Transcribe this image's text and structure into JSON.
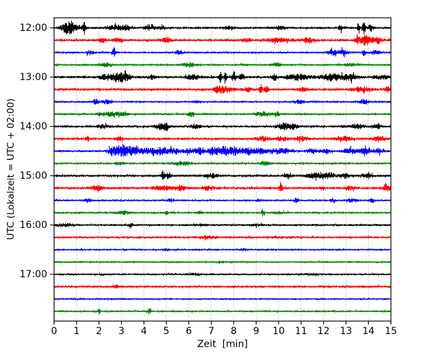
{
  "chart_data": {
    "type": "line",
    "subtype": "helicorder-seismogram",
    "title": "",
    "xlabel": "Zeit  [min]",
    "ylabel": "UTC (Lokalzeit = UTC + 02:00)",
    "xlim": [
      0,
      15
    ],
    "minutes_per_line": 15,
    "xticks": [
      "0",
      "1",
      "2",
      "3",
      "4",
      "5",
      "6",
      "7",
      "8",
      "9",
      "10",
      "11",
      "12",
      "13",
      "14",
      "15"
    ],
    "ytick_hours": [
      "12:00",
      "13:00",
      "14:00",
      "15:00",
      "16:00",
      "17:00"
    ],
    "grid": {
      "vertical_dotted": true,
      "color": "#999999"
    },
    "colors": {
      "black": "#000000",
      "red": "#ff0000",
      "blue": "#0000ff",
      "green": "#008000"
    },
    "amplitude_units": "px half-amplitude; events are [center_min, width_min, amp]",
    "traces": [
      {
        "time": "12:00",
        "color": "black",
        "base": 1.7,
        "events": [
          [
            0.5,
            0.2,
            5
          ],
          [
            0.8,
            0.3,
            6.5
          ],
          [
            1.35,
            0.07,
            9
          ],
          [
            2.7,
            0.3,
            3
          ],
          [
            3.2,
            0.3,
            3
          ],
          [
            4.3,
            0.3,
            2.5
          ],
          [
            4.85,
            0.1,
            3.5
          ],
          [
            7.8,
            0.2,
            2
          ],
          [
            10.1,
            0.2,
            2
          ],
          [
            12.75,
            0.07,
            5
          ],
          [
            13.55,
            0.05,
            11
          ],
          [
            13.8,
            0.06,
            12
          ],
          [
            14.1,
            0.12,
            4
          ]
        ]
      },
      {
        "time": "12:15",
        "color": "red",
        "base": 1.9,
        "events": [
          [
            2.15,
            0.15,
            3
          ],
          [
            2.9,
            0.2,
            2.5
          ],
          [
            5.0,
            0.25,
            2.5
          ],
          [
            8.6,
            0.2,
            2
          ],
          [
            10.0,
            0.5,
            2.2
          ],
          [
            11.3,
            0.3,
            2.5
          ],
          [
            13.5,
            0.1,
            4
          ],
          [
            13.9,
            0.25,
            7
          ],
          [
            14.4,
            0.2,
            4
          ]
        ]
      },
      {
        "time": "12:30",
        "color": "blue",
        "base": 1.5,
        "events": [
          [
            1.6,
            0.15,
            3
          ],
          [
            2.65,
            0.08,
            5.5
          ],
          [
            5.55,
            0.15,
            3
          ],
          [
            12.4,
            0.3,
            3.5
          ],
          [
            12.9,
            0.15,
            4
          ],
          [
            13.8,
            0.07,
            4
          ],
          [
            14.3,
            0.2,
            2.5
          ]
        ]
      },
      {
        "time": "12:45",
        "color": "green",
        "base": 1.5,
        "events": [
          [
            2.3,
            0.25,
            1.8
          ],
          [
            6.0,
            0.3,
            2.5
          ],
          [
            9.9,
            0.25,
            2
          ],
          [
            13.2,
            0.3,
            1.5
          ]
        ]
      },
      {
        "time": "13:00",
        "color": "black",
        "base": 1.9,
        "events": [
          [
            2.3,
            0.25,
            3.5
          ],
          [
            2.8,
            0.25,
            5
          ],
          [
            3.15,
            0.3,
            5
          ],
          [
            4.35,
            0.15,
            2.8
          ],
          [
            6.2,
            0.3,
            3
          ],
          [
            7.4,
            0.06,
            8
          ],
          [
            7.62,
            0.06,
            8
          ],
          [
            8.0,
            0.07,
            9
          ],
          [
            8.35,
            0.12,
            4
          ],
          [
            9.8,
            0.1,
            5
          ],
          [
            10.8,
            0.6,
            3.5
          ],
          [
            12.4,
            0.5,
            4.5
          ],
          [
            13.2,
            0.3,
            4
          ],
          [
            14.6,
            0.25,
            2.5
          ]
        ]
      },
      {
        "time": "13:15",
        "color": "red",
        "base": 1.9,
        "events": [
          [
            7.35,
            0.2,
            5
          ],
          [
            7.75,
            0.25,
            3.5
          ],
          [
            8.65,
            0.15,
            3
          ],
          [
            9.2,
            0.07,
            6.5
          ],
          [
            9.45,
            0.1,
            4
          ],
          [
            11.1,
            0.2,
            2
          ],
          [
            13.7,
            0.4,
            3
          ],
          [
            14.9,
            0.15,
            3.5
          ]
        ]
      },
      {
        "time": "13:30",
        "color": "blue",
        "base": 1.5,
        "events": [
          [
            1.85,
            0.15,
            3.5
          ],
          [
            2.35,
            0.2,
            2.5
          ],
          [
            6.4,
            0.15,
            1.8
          ],
          [
            10.9,
            0.25,
            2.2
          ],
          [
            13.8,
            0.25,
            2.2
          ]
        ]
      },
      {
        "time": "13:45",
        "color": "green",
        "base": 1.6,
        "events": [
          [
            2.4,
            0.4,
            2.8
          ],
          [
            3.0,
            0.25,
            2.5
          ],
          [
            6.1,
            0.1,
            4
          ],
          [
            9.3,
            0.35,
            2.5
          ],
          [
            9.95,
            0.15,
            2.2
          ]
        ]
      },
      {
        "time": "14:00",
        "color": "black",
        "base": 1.8,
        "events": [
          [
            2.2,
            0.25,
            2
          ],
          [
            4.75,
            0.25,
            4
          ],
          [
            5.0,
            0.07,
            7.5
          ],
          [
            6.3,
            0.25,
            2
          ],
          [
            10.25,
            0.3,
            4.5
          ],
          [
            10.7,
            0.15,
            3
          ],
          [
            13.5,
            0.25,
            3
          ],
          [
            14.4,
            0.2,
            2
          ]
        ]
      },
      {
        "time": "14:15",
        "color": "red",
        "base": 1.8,
        "events": [
          [
            1.5,
            0.1,
            3
          ],
          [
            2.9,
            0.15,
            2.5
          ],
          [
            9.3,
            0.3,
            2.5
          ],
          [
            10.1,
            0.25,
            2.5
          ],
          [
            11.0,
            0.3,
            2.5
          ],
          [
            12.85,
            0.3,
            4
          ],
          [
            14.5,
            0.25,
            3.5
          ]
        ]
      },
      {
        "time": "14:30",
        "color": "blue",
        "base": 1.6,
        "events": [
          [
            2.6,
            0.2,
            5.5
          ],
          [
            3.05,
            0.3,
            7
          ],
          [
            3.5,
            0.25,
            5
          ],
          [
            4.1,
            0.3,
            4
          ],
          [
            4.7,
            0.3,
            4.5
          ],
          [
            5.3,
            0.3,
            3.5
          ],
          [
            6.0,
            0.25,
            3.5
          ],
          [
            6.5,
            0.2,
            4.5
          ],
          [
            7.1,
            0.25,
            5
          ],
          [
            7.6,
            0.3,
            6
          ],
          [
            8.1,
            0.25,
            5
          ],
          [
            8.65,
            0.3,
            4.5
          ],
          [
            9.2,
            0.25,
            4
          ],
          [
            9.8,
            0.25,
            3.5
          ],
          [
            10.3,
            0.3,
            3
          ],
          [
            11.5,
            0.25,
            3
          ],
          [
            12.1,
            0.2,
            2.5
          ],
          [
            13.2,
            0.3,
            3.5
          ],
          [
            13.85,
            0.25,
            4
          ],
          [
            14.45,
            0.2,
            3
          ]
        ]
      },
      {
        "time": "14:45",
        "color": "green",
        "base": 1.6,
        "events": [
          [
            2.9,
            0.2,
            1.8
          ],
          [
            5.7,
            0.35,
            2.5
          ],
          [
            9.4,
            0.25,
            2
          ]
        ]
      },
      {
        "time": "15:00",
        "color": "black",
        "base": 1.8,
        "events": [
          [
            4.85,
            0.07,
            6.5
          ],
          [
            5.1,
            0.08,
            5
          ],
          [
            7.0,
            0.25,
            2
          ],
          [
            10.4,
            0.15,
            3
          ],
          [
            11.6,
            0.35,
            3.5
          ],
          [
            12.3,
            0.25,
            3.5
          ],
          [
            12.95,
            0.2,
            3
          ],
          [
            13.9,
            0.25,
            2.5
          ]
        ]
      },
      {
        "time": "15:15",
        "color": "red",
        "base": 1.9,
        "events": [
          [
            1.9,
            0.2,
            5
          ],
          [
            4.8,
            0.35,
            2.5
          ],
          [
            5.6,
            0.3,
            2.5
          ],
          [
            6.8,
            0.2,
            2.5
          ],
          [
            10.1,
            0.07,
            5.5
          ],
          [
            11.9,
            0.08,
            2.5
          ],
          [
            13.2,
            0.2,
            2
          ],
          [
            14.8,
            0.2,
            4
          ]
        ]
      },
      {
        "time": "15:30",
        "color": "blue",
        "base": 1.5,
        "events": [
          [
            1.5,
            0.15,
            2.5
          ],
          [
            5.2,
            0.15,
            2
          ],
          [
            9.1,
            0.08,
            2.5
          ],
          [
            10.8,
            0.1,
            3
          ],
          [
            12.4,
            0.1,
            2.5
          ],
          [
            13.3,
            0.2,
            3
          ],
          [
            14.15,
            0.1,
            2.5
          ]
        ]
      },
      {
        "time": "15:45",
        "color": "green",
        "base": 1.5,
        "events": [
          [
            3.1,
            0.25,
            2.5
          ],
          [
            5.0,
            0.08,
            2.5
          ],
          [
            6.5,
            0.1,
            2
          ],
          [
            9.3,
            0.07,
            4.5
          ],
          [
            10.1,
            0.3,
            1.5
          ]
        ]
      },
      {
        "time": "16:00",
        "color": "black",
        "base": 1.6,
        "events": [
          [
            0.5,
            0.4,
            1.5
          ],
          [
            3.4,
            0.08,
            2.8
          ],
          [
            6.5,
            0.3,
            1.2
          ],
          [
            9.0,
            0.3,
            1.2
          ]
        ]
      },
      {
        "time": "16:15",
        "color": "red",
        "base": 1.7,
        "events": [
          [
            6.8,
            0.4,
            1.5
          ],
          [
            10.0,
            0.3,
            1
          ]
        ]
      },
      {
        "time": "16:30",
        "color": "blue",
        "base": 1.5,
        "events": [
          [
            5.0,
            0.2,
            1
          ],
          [
            8.4,
            0.2,
            1.2
          ]
        ]
      },
      {
        "time": "16:45",
        "color": "green",
        "base": 1.4,
        "events": [
          [
            7.5,
            0.3,
            0.8
          ]
        ]
      },
      {
        "time": "17:00",
        "color": "black",
        "base": 1.5,
        "events": [
          [
            6.3,
            0.2,
            1.5
          ],
          [
            11.5,
            0.3,
            1
          ]
        ]
      },
      {
        "time": "17:15",
        "color": "red",
        "base": 1.7,
        "events": [
          [
            2.75,
            0.1,
            3.2
          ]
        ]
      },
      {
        "time": "17:30",
        "color": "blue",
        "base": 1.4,
        "events": []
      },
      {
        "time": "17:45",
        "color": "green",
        "base": 1.5,
        "events": [
          [
            2.0,
            0.07,
            2.8
          ],
          [
            4.25,
            0.08,
            4.5
          ]
        ]
      }
    ]
  }
}
